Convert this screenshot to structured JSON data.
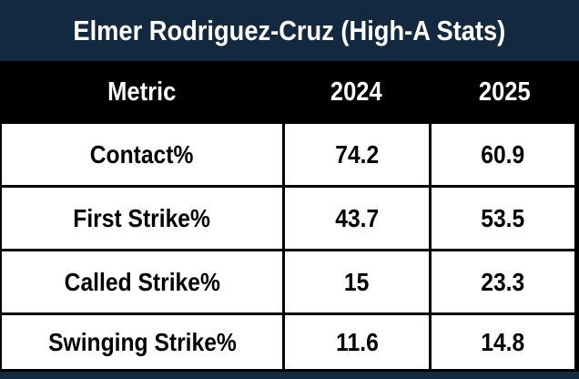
{
  "colors": {
    "navy": "#13293F",
    "header_black": "#000000",
    "cell_white": "#FFFFFF",
    "text_white": "#FFFFFF",
    "text_black": "#000000"
  },
  "header": {
    "title": "Elmer Rodriguez-Cruz (High-A Stats)"
  },
  "table": {
    "columns": [
      "Metric",
      "2024",
      "2025"
    ],
    "rows": [
      {
        "metric": "Contact%",
        "y2024": "74.2",
        "y2025": "60.9"
      },
      {
        "metric": "First Strike%",
        "y2024": "43.7",
        "y2025": "53.5"
      },
      {
        "metric": "Called Strike%",
        "y2024": "15",
        "y2025": "23.3"
      },
      {
        "metric": "Swinging Strike%",
        "y2024": "11.6",
        "y2025": "14.8"
      }
    ]
  },
  "chart_data": {
    "type": "table",
    "title": "Elmer Rodriguez-Cruz (High-A Stats)",
    "columns": [
      "Metric",
      "2024",
      "2025"
    ],
    "rows": [
      [
        "Contact%",
        74.2,
        60.9
      ],
      [
        "First Strike%",
        43.7,
        53.5
      ],
      [
        "Called Strike%",
        15,
        23.3
      ],
      [
        "Swinging Strike%",
        11.6,
        14.8
      ]
    ],
    "layout_hints": {
      "title_position": "top",
      "title_background": "#13293F",
      "header_background": "#000000",
      "body_background": "#FFFFFF",
      "grid": "on"
    }
  }
}
